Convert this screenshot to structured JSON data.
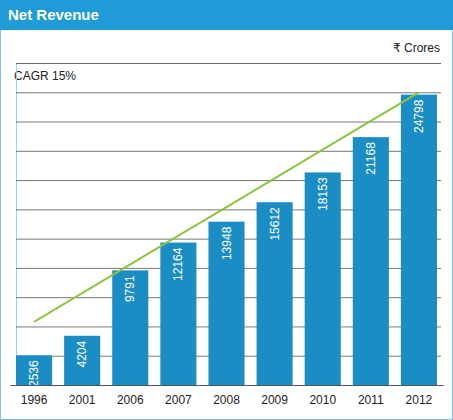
{
  "chart_data": {
    "type": "bar",
    "title": "Net Revenue",
    "ylabel": "₹ Crores",
    "annotations": [
      "CAGR 15%"
    ],
    "categories": [
      "1996",
      "2001",
      "2006",
      "2007",
      "2008",
      "2009",
      "2010",
      "2011",
      "2012"
    ],
    "series": [
      {
        "type": "bar",
        "color": "#1b8dc5",
        "values": [
          2536,
          4204,
          9791,
          12164,
          13948,
          15612,
          18153,
          21168,
          24798
        ]
      },
      {
        "type": "line",
        "color": "#8cc63f",
        "line_style": "solid",
        "values": [
          5400,
          7850,
          10300,
          12750,
          15200,
          17650,
          20100,
          22550,
          25000
        ]
      }
    ],
    "ylim": [
      0,
      27500
    ],
    "yticks": [
      0,
      2500,
      5000,
      7500,
      10000,
      12500,
      15000,
      17500,
      20000,
      22500,
      25000,
      27500
    ],
    "grid": true,
    "data_labels": true,
    "tick_labels": "x"
  }
}
